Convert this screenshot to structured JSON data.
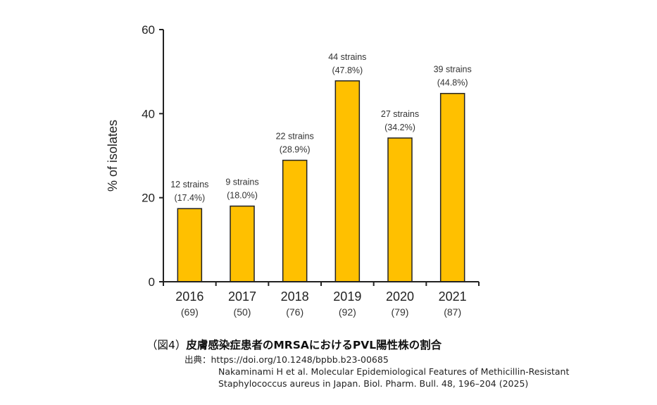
{
  "chart_data": {
    "type": "bar",
    "ylabel": "% of isolates",
    "ylim": [
      0,
      60
    ],
    "yticks": [
      "0",
      "20",
      "40",
      "60"
    ],
    "bar_color": "#FFC000",
    "categories": [
      "2016",
      "2017",
      "2018",
      "2019",
      "2020",
      "2021"
    ],
    "category_sublabels": [
      "(69)",
      "(50)",
      "(76)",
      "(92)",
      "(79)",
      "(87)"
    ],
    "values": [
      17.4,
      18.0,
      28.9,
      47.8,
      34.2,
      44.8
    ],
    "data_labels_line1": [
      "12 strains",
      "9 strains",
      "22 strains",
      "44 strains",
      "27 strains",
      "39 strains"
    ],
    "data_labels_line2": [
      "(17.4%)",
      "(18.0%)",
      "(28.9%)",
      "(47.8%)",
      "(34.2%)",
      "(44.8%)"
    ]
  },
  "caption": {
    "number": "（図4）",
    "title": "皮膚感染症患者のMRSAにおけるPVL陽性株の割合"
  },
  "source": {
    "line1": "出典：https://doi.org/10.1248/bpbb.b23-00685",
    "line2": "Nakaminami H et al. Molecular Epidemiological Features of Methicillin-Resistant",
    "line3": "Staphylococcus aureus in Japan. Biol. Pharm. Bull. 48, 196–204 (2025)"
  }
}
